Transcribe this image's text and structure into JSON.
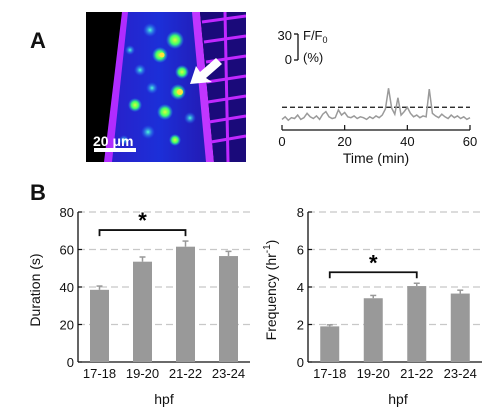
{
  "panels": {
    "a": "A",
    "b": "B"
  },
  "scale_bar": {
    "label": "20 μm"
  },
  "trace_scale": {
    "top": "30",
    "bottom": "0",
    "quantity_main": "F/F",
    "quantity_sub": "0",
    "unit": "(%)"
  },
  "colors": {
    "bar": "#999999",
    "trace": "#9a9a9a",
    "grid": "#c8c8c8",
    "image_bg": "#1a0a7a",
    "image_edge": "#c028ff",
    "cell_green": "#3cff6a",
    "cell_yellow": "#ffe23a",
    "arrow": "#ffffff"
  },
  "chart_data": [
    {
      "type": "line",
      "id": "trace",
      "xlabel": "Time (min)",
      "xlim": [
        0,
        60
      ],
      "xticks": [
        "0",
        "20",
        "40",
        "60"
      ],
      "threshold_style": "dashed",
      "threshold": 17,
      "x": [
        0,
        1,
        2,
        3,
        4,
        5,
        6,
        7,
        8,
        9,
        10,
        11,
        12,
        13,
        14,
        15,
        16,
        17,
        18,
        19,
        20,
        21,
        22,
        23,
        24,
        25,
        26,
        27,
        28,
        29,
        30,
        31,
        32,
        33,
        34,
        35,
        36,
        37,
        38,
        39,
        40,
        41,
        42,
        43,
        44,
        45,
        46,
        47,
        48,
        49,
        50,
        51,
        52,
        53,
        54,
        55,
        56,
        57,
        58,
        59,
        60
      ],
      "y": [
        3,
        6,
        2,
        5,
        4,
        8,
        3,
        5,
        10,
        6,
        4,
        7,
        3,
        9,
        12,
        6,
        4,
        5,
        14,
        8,
        11,
        6,
        5,
        7,
        4,
        6,
        5,
        3,
        6,
        4,
        7,
        5,
        8,
        15,
        39,
        16,
        9,
        28,
        8,
        12,
        17,
        10,
        6,
        8,
        5,
        7,
        6,
        38,
        10,
        7,
        5,
        9,
        6,
        4,
        8,
        5,
        7,
        4,
        6,
        3,
        5
      ]
    },
    {
      "type": "bar",
      "id": "duration",
      "categories": [
        "17-18",
        "19-20",
        "21-22",
        "23-24"
      ],
      "values": [
        38.5,
        53.5,
        61.5,
        56.5
      ],
      "errors": [
        2,
        2.5,
        3,
        2.5
      ],
      "ylabel": "Duration (s)",
      "xlabel": "hpf",
      "ylim": [
        0,
        80
      ],
      "yticks": [
        "0",
        "20",
        "40",
        "60",
        "80"
      ],
      "grid": true,
      "significance": {
        "from": 0,
        "to": 2,
        "label": "*"
      }
    },
    {
      "type": "bar",
      "id": "frequency",
      "categories": [
        "17-18",
        "19-20",
        "21-22",
        "23-24"
      ],
      "values": [
        1.9,
        3.4,
        4.05,
        3.65
      ],
      "errors": [
        0.08,
        0.15,
        0.15,
        0.18
      ],
      "ylabel_main": "Frequency (hr",
      "ylabel_sup": "-1",
      "ylabel_end": ")",
      "xlabel": "hpf",
      "ylim": [
        0,
        8
      ],
      "yticks": [
        "0",
        "2",
        "4",
        "6",
        "8"
      ],
      "grid": true,
      "significance": {
        "from": 0,
        "to": 2,
        "label": "*"
      }
    }
  ]
}
